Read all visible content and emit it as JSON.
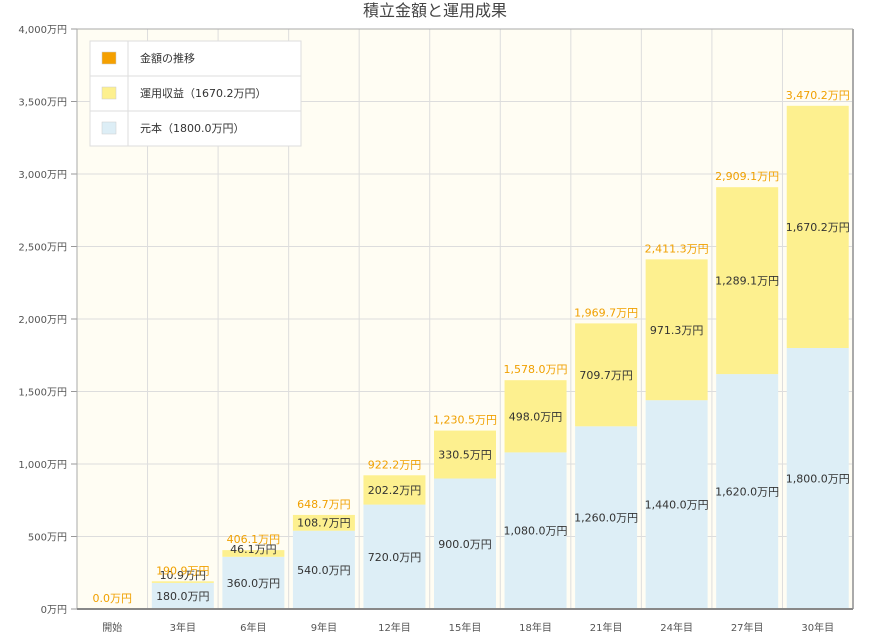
{
  "chart_data": {
    "type": "bar",
    "stacked": true,
    "title": "積立金額と運用成果",
    "categories": [
      "開始",
      "3年目",
      "6年目",
      "9年目",
      "12年目",
      "15年目",
      "18年目",
      "21年目",
      "24年目",
      "27年目",
      "30年目"
    ],
    "series": [
      {
        "name": "元本（1800.0万円）",
        "color": "#ddeef6",
        "values": [
          0,
          180.0,
          360.0,
          540.0,
          720.0,
          900.0,
          1080.0,
          1260.0,
          1440.0,
          1620.0,
          1800.0
        ],
        "labels": [
          "",
          "180.0万円",
          "360.0万円",
          "540.0万円",
          "720.0万円",
          "900.0万円",
          "1,080.0万円",
          "1,260.0万円",
          "1,440.0万円",
          "1,620.0万円",
          "1,800.0万円"
        ]
      },
      {
        "name": "運用収益（1670.2万円）",
        "color": "#fdf08f",
        "values": [
          0,
          10.9,
          46.1,
          108.7,
          202.2,
          330.5,
          498.0,
          709.7,
          971.3,
          1289.1,
          1670.2
        ],
        "labels": [
          "",
          "10.9万円",
          "46.1万円",
          "108.7万円",
          "202.2万円",
          "330.5万円",
          "498.0万円",
          "709.7万円",
          "971.3万円",
          "1,289.1万円",
          "1,670.2万円"
        ]
      }
    ],
    "totals": {
      "name": "金額の推移",
      "color": "#f5a000",
      "values": [
        0.0,
        190.9,
        406.1,
        648.7,
        922.2,
        1230.5,
        1578.0,
        1969.7,
        2411.3,
        2909.1,
        3470.2
      ],
      "labels": [
        "0.0万円",
        "190.9万円",
        "406.1万円",
        "648.7万円",
        "922.2万円",
        "1,230.5万円",
        "1,578.0万円",
        "1,969.7万円",
        "2,411.3万円",
        "2,909.1万円",
        "3,470.2万円"
      ]
    },
    "ylim": [
      0,
      4000
    ],
    "yticks": [
      0,
      500,
      1000,
      1500,
      2000,
      2500,
      3000,
      3500,
      4000
    ],
    "ytick_labels": [
      "0万円",
      "500万円",
      "1,000万円",
      "1,500万円",
      "2,000万円",
      "2,500万円",
      "3,000万円",
      "3,500万円",
      "4,000万円"
    ],
    "grid": true,
    "legend_position": "top-left",
    "plot_background": "#fffdf3"
  }
}
